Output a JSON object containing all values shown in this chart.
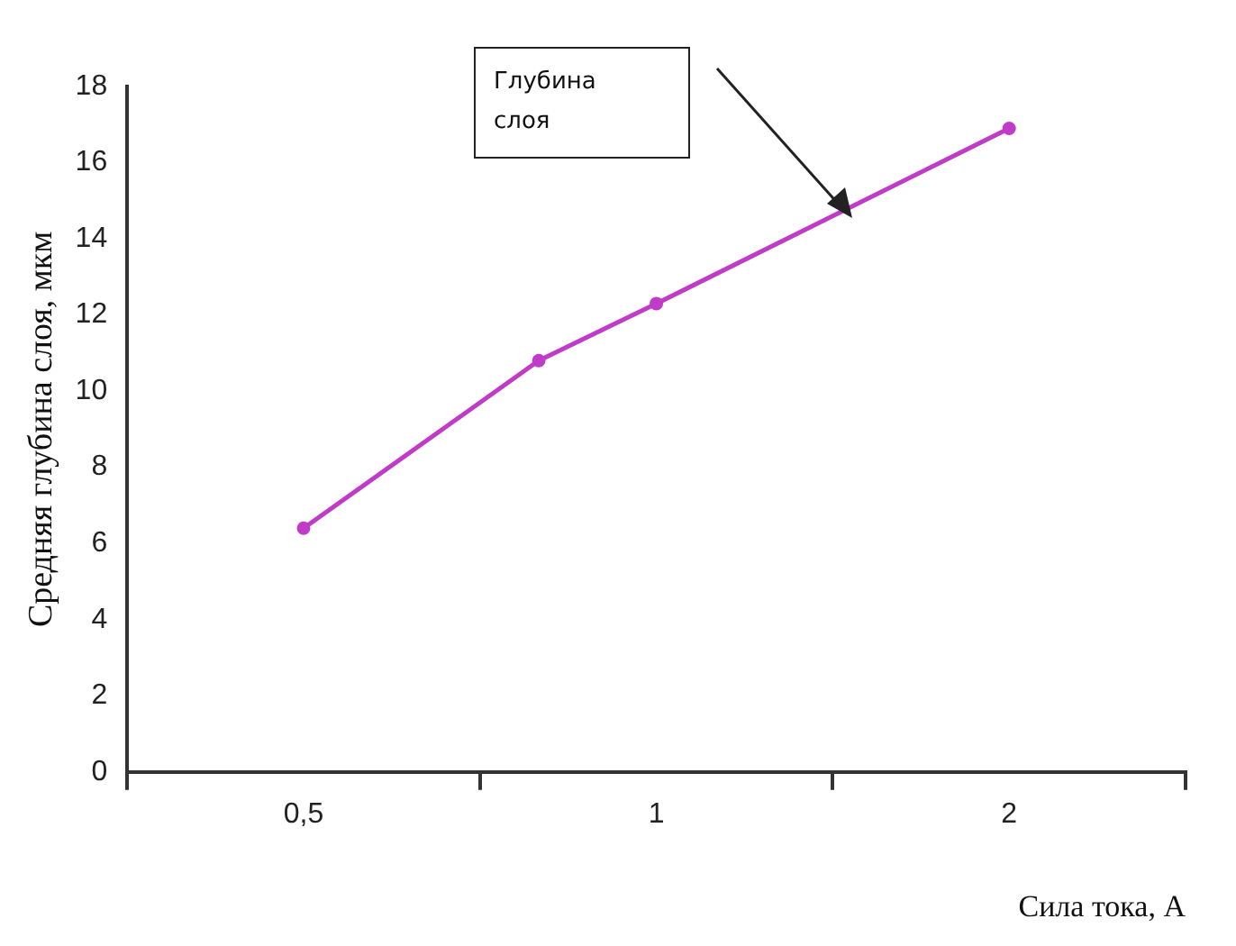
{
  "chart_data": {
    "type": "line",
    "xlabel": "Сила тока, А",
    "ylabel": "Средняя глубина слоя, мкм",
    "categories": [
      null,
      null,
      null,
      "0,5",
      null,
      null,
      null,
      null,
      null,
      "1",
      null,
      null,
      null,
      null,
      null,
      "2",
      null,
      null,
      null
    ],
    "series": [
      {
        "color": "#c03cc8",
        "values": [
          null,
          null,
          null,
          6.4,
          null,
          null,
          null,
          10.8,
          null,
          12.3,
          null,
          null,
          null,
          null,
          null,
          16.9,
          null,
          null,
          null
        ]
      }
    ],
    "ylim": [
      0,
      18
    ],
    "yticks": [
      0,
      2,
      4,
      6,
      8,
      10,
      12,
      14,
      16,
      18
    ],
    "marker": "circle",
    "line_style": "solid",
    "annotations": [
      "Глубина слоя"
    ]
  }
}
